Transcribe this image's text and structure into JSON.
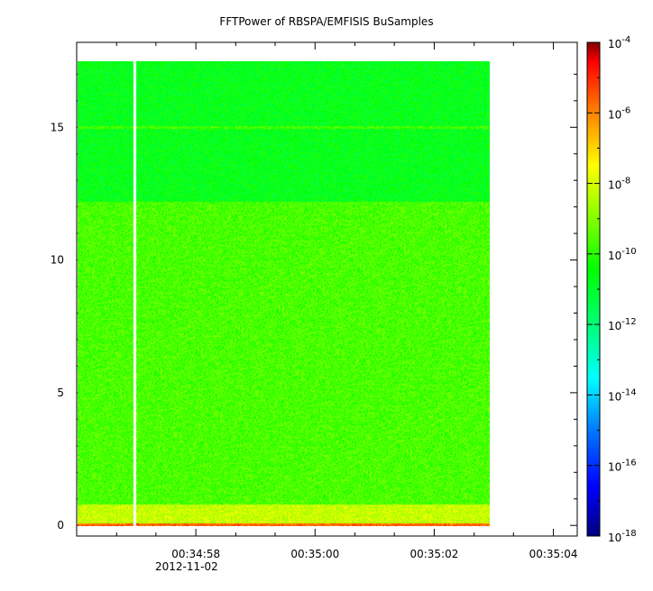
{
  "chart_data": {
    "type": "heatmap",
    "title": "FFTPower of RBSPA/EMFISIS  BuSamples",
    "xlabel": "",
    "ylabel": "",
    "x_axis": {
      "type": "time",
      "range": [
        "00:34:56.00",
        "00:35:04.40"
      ],
      "ticks": [
        "00:34:58",
        "00:35:00",
        "00:35:02",
        "00:35:04"
      ],
      "tick_values_s": [
        2,
        4,
        6,
        8
      ],
      "minor_tick_values_s": [
        0.67,
        1.33,
        2.67,
        3.33,
        4.67,
        5.33,
        6.67,
        7.33
      ],
      "date_label": "2012-11-02",
      "data_start_s": 0,
      "data_end_s": 6.93,
      "gap_at_s": 0.96
    },
    "y_axis": {
      "range": [
        -0.4,
        18.2
      ],
      "ticks": [
        0,
        5,
        10,
        15
      ],
      "data_top": 17.5
    },
    "colorbar": {
      "scale": "log",
      "range": [
        1e-18,
        0.0001
      ],
      "ticks": [
        {
          "base": "10",
          "exp": "-4",
          "value": 0.0001
        },
        {
          "base": "10",
          "exp": "-6",
          "value": 1e-06
        },
        {
          "base": "10",
          "exp": "-8",
          "value": 1e-08
        },
        {
          "base": "10",
          "exp": "-10",
          "value": 1e-10
        },
        {
          "base": "10",
          "exp": "-12",
          "value": 1e-12
        },
        {
          "base": "10",
          "exp": "-14",
          "value": 1e-14
        },
        {
          "base": "10",
          "exp": "-16",
          "value": 1e-16
        },
        {
          "base": "10",
          "exp": "-18",
          "value": 1e-18
        }
      ],
      "colormap": [
        "#00007f",
        "#0000ff",
        "#0080ff",
        "#00ffff",
        "#00ff80",
        "#00ff00",
        "#80ff00",
        "#ffff00",
        "#ff8000",
        "#ff0000",
        "#7f0000"
      ]
    },
    "bands": [
      {
        "y_from": 12.2,
        "y_to": 17.5,
        "log_power": -11.2
      },
      {
        "y_from": 0.8,
        "y_to": 12.2,
        "log_power": -10.2
      },
      {
        "y_from": 0.1,
        "y_to": 0.8,
        "log_power": -8.8
      },
      {
        "y_from": 0.0,
        "y_to": 0.1,
        "log_power": -6.5
      }
    ],
    "lines": [
      {
        "y": 15.0,
        "log_power": -10.3
      }
    ],
    "grid": false,
    "legend": "none"
  }
}
